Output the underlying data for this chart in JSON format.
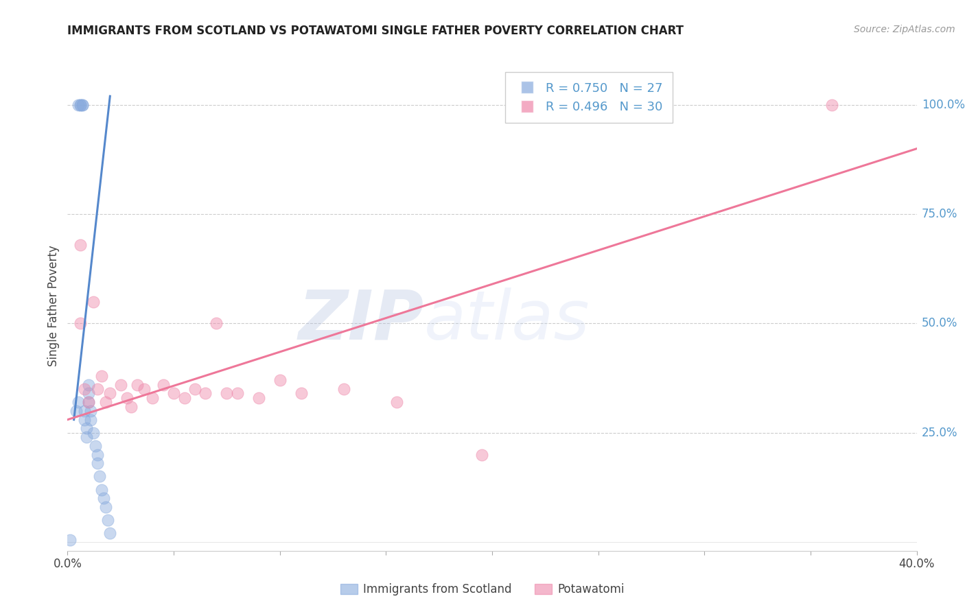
{
  "title": "IMMIGRANTS FROM SCOTLAND VS POTAWATOMI SINGLE FATHER POVERTY CORRELATION CHART",
  "source": "Source: ZipAtlas.com",
  "ylabel_left": "Single Father Poverty",
  "watermark_zip": "ZIP",
  "watermark_atlas": "atlas",
  "legend_blue_r": "R = 0.750",
  "legend_blue_n": "N = 27",
  "legend_pink_r": "R = 0.496",
  "legend_pink_n": "N = 30",
  "xlim": [
    0.0,
    0.4
  ],
  "ylim": [
    -0.02,
    1.1
  ],
  "yticks_right": [
    0.25,
    0.5,
    0.75,
    1.0
  ],
  "ytick_labels_right": [
    "25.0%",
    "50.0%",
    "75.0%",
    "100.0%"
  ],
  "xtick_positions": [
    0.0,
    0.05,
    0.1,
    0.15,
    0.2,
    0.25,
    0.3,
    0.35,
    0.4
  ],
  "xtick_labels_sparse": [
    "0.0%",
    "",
    "",
    "",
    "",
    "",
    "",
    "",
    "40.0%"
  ],
  "grid_color": "#cccccc",
  "bg_color": "#ffffff",
  "blue_color": "#88aadd",
  "pink_color": "#ee88aa",
  "blue_line_color": "#5588cc",
  "pink_line_color": "#ee7799",
  "right_axis_color": "#5599cc",
  "scotland_x": [
    0.001,
    0.004,
    0.005,
    0.005,
    0.006,
    0.006,
    0.007,
    0.007,
    0.008,
    0.008,
    0.009,
    0.009,
    0.01,
    0.01,
    0.01,
    0.011,
    0.011,
    0.012,
    0.013,
    0.014,
    0.014,
    0.015,
    0.016,
    0.017,
    0.018,
    0.019,
    0.02
  ],
  "scotland_y": [
    0.005,
    0.3,
    0.32,
    1.0,
    1.0,
    1.0,
    1.0,
    1.0,
    0.3,
    0.28,
    0.26,
    0.24,
    0.36,
    0.34,
    0.32,
    0.3,
    0.28,
    0.25,
    0.22,
    0.2,
    0.18,
    0.15,
    0.12,
    0.1,
    0.08,
    0.05,
    0.02
  ],
  "potawatomi_x": [
    0.006,
    0.006,
    0.008,
    0.01,
    0.012,
    0.014,
    0.016,
    0.018,
    0.02,
    0.025,
    0.028,
    0.03,
    0.033,
    0.036,
    0.04,
    0.045,
    0.05,
    0.055,
    0.06,
    0.065,
    0.07,
    0.075,
    0.08,
    0.09,
    0.1,
    0.11,
    0.13,
    0.155,
    0.195,
    0.36
  ],
  "potawatomi_y": [
    0.5,
    0.68,
    0.35,
    0.32,
    0.55,
    0.35,
    0.38,
    0.32,
    0.34,
    0.36,
    0.33,
    0.31,
    0.36,
    0.35,
    0.33,
    0.36,
    0.34,
    0.33,
    0.35,
    0.34,
    0.5,
    0.34,
    0.34,
    0.33,
    0.37,
    0.34,
    0.35,
    0.32,
    0.2,
    1.0
  ],
  "blue_trend_x": [
    0.003,
    0.02
  ],
  "blue_trend_y": [
    0.28,
    1.02
  ],
  "pink_trend_x": [
    0.0,
    0.4
  ],
  "pink_trend_y": [
    0.28,
    0.9
  ]
}
